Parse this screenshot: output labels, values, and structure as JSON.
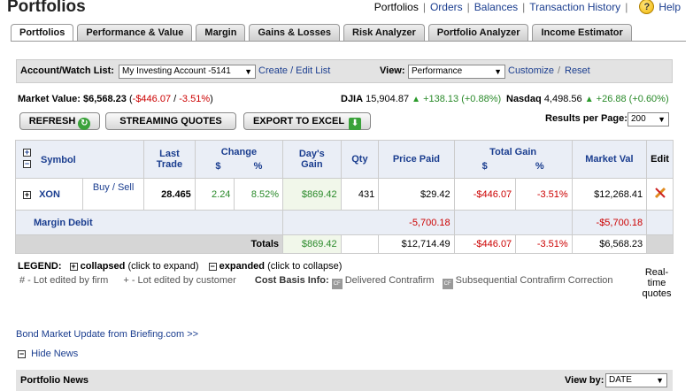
{
  "header": {
    "title": "Portfolios",
    "nav": [
      "Portfolios",
      "Orders",
      "Balances",
      "Transaction History"
    ],
    "help": "Help"
  },
  "tabs": [
    "Portfolios",
    "Performance & Value",
    "Margin",
    "Gains & Losses",
    "Risk Analyzer",
    "Portfolio Analyzer",
    "Income Estimator"
  ],
  "controls": {
    "account_label": "Account/Watch List:",
    "account_value": "My Investing Account -5141",
    "create_edit": "Create / Edit List",
    "view_label": "View:",
    "view_value": "Performance",
    "customize": "Customize",
    "reset": "Reset"
  },
  "summary": {
    "market_value_label": "Market Value:",
    "market_value": "$6,568.23",
    "change": "-$446.07",
    "change_pct": "-3.51%",
    "djia_label": "DJIA",
    "djia_value": "15,904.87",
    "djia_change": "+138.13 (+0.88%)",
    "nasdaq_label": "Nasdaq",
    "nasdaq_value": "4,498.56",
    "nasdaq_change": "+26.88 (+0.60%)"
  },
  "buttons": {
    "refresh": "REFRESH",
    "streaming": "STREAMING QUOTES",
    "export": "EXPORT TO EXCEL",
    "results_label": "Results per Page:",
    "results_value": "200"
  },
  "table": {
    "headers": {
      "symbol": "Symbol",
      "last_trade": "Last Trade",
      "change": "Change",
      "change_dollar": "$",
      "change_pct": "%",
      "days_gain": "Day's Gain",
      "qty": "Qty",
      "price_paid": "Price Paid",
      "total_gain": "Total Gain",
      "tg_dollar": "$",
      "tg_pct": "%",
      "market_val": "Market Val",
      "edit": "Edit"
    },
    "row": {
      "symbol": "XON",
      "buy_sell": "Buy / Sell",
      "last_trade": "28.465",
      "change": "2.24",
      "change_pct": "8.52%",
      "days_gain": "$869.42",
      "qty": "431",
      "price_paid": "$29.42",
      "total_gain": "-$446.07",
      "total_gain_pct": "-3.51%",
      "market_val": "$12,268.41"
    },
    "margin": {
      "label": "Margin Debit",
      "days_gain": "-5,700.18",
      "market_val": "-$5,700.18"
    },
    "totals": {
      "label": "Totals",
      "days_gain": "$869.42",
      "price_paid": "$12,714.49",
      "total_gain": "-$446.07",
      "total_gain_pct": "-3.51%",
      "market_val": "$6,568.23"
    }
  },
  "legend": {
    "label": "LEGEND:",
    "collapsed": "collapsed",
    "collapsed_hint": "(click to expand)",
    "expanded": "expanded",
    "expanded_hint": "(click to collapse)",
    "firm": "# - Lot edited by firm",
    "customer": "+ - Lot edited by customer",
    "cost_basis": "Cost Basis Info:",
    "delivered": "Delivered Contrafirm",
    "subsequential": "Subsequential Contrafirm Correction",
    "realtime": "Real-time quotes"
  },
  "news": {
    "bond_link": "Bond Market Update from Briefing.com >>",
    "hide": "Hide News",
    "title": "Portfolio News",
    "view_by_label": "View by:",
    "view_by_value": "DATE"
  }
}
